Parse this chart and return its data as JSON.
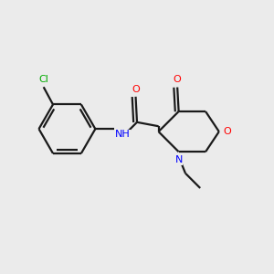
{
  "background_color": "#ebebeb",
  "bond_color": "#1a1a1a",
  "atom_colors": {
    "O": "#ff0000",
    "N": "#0000ff",
    "Cl": "#00aa00",
    "C": "#1a1a1a"
  },
  "figsize": [
    3.0,
    3.0
  ],
  "dpi": 100
}
